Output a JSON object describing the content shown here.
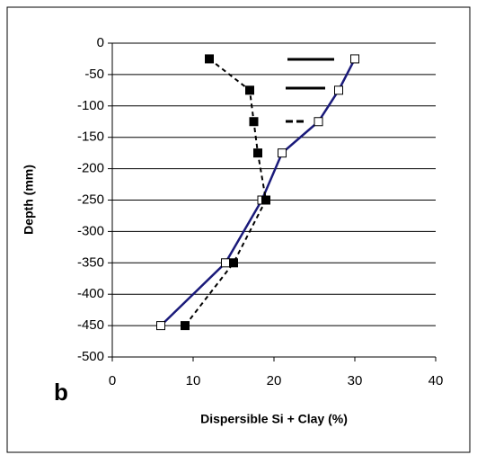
{
  "chart_data": {
    "type": "line",
    "panel_label": "b",
    "x_label": "Dispersible Si + Clay (%)",
    "y_label": "Depth (mm)",
    "xlim": [
      0,
      40
    ],
    "xticks": [
      0,
      10,
      20,
      30,
      40
    ],
    "ylim": [
      -500,
      0
    ],
    "yticks": [
      0,
      -50,
      -100,
      -150,
      -200,
      -250,
      -300,
      -350,
      -400,
      -450,
      -500
    ],
    "grid": true,
    "series": [
      {
        "color": "#1a1a7a",
        "line": "solid",
        "marker": "open-square",
        "x": [
          30,
          28,
          25.5,
          21,
          18.5,
          14,
          6
        ],
        "y": [
          -25,
          -75,
          -125,
          -175,
          -250,
          -350,
          -450
        ]
      },
      {
        "color": "#000000",
        "line": "dashed",
        "marker": "filled-square",
        "x": [
          12,
          17,
          17.5,
          18,
          19,
          15,
          9
        ],
        "y": [
          -25,
          -75,
          -125,
          -175,
          -250,
          -350,
          -450
        ]
      }
    ]
  }
}
